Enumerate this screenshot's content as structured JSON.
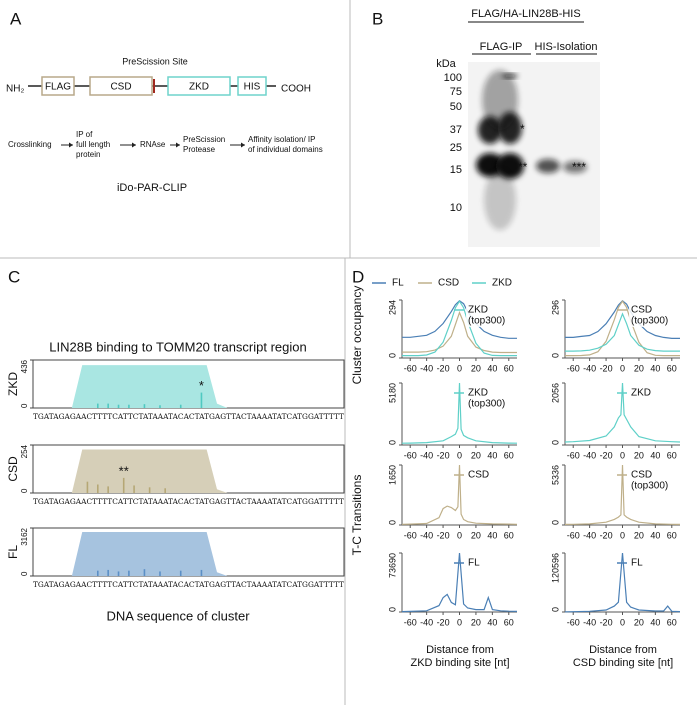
{
  "panel_a": {
    "label": "A",
    "site": "PreScission Site",
    "n_term": "NH₂",
    "c_term": "COOH",
    "domains": [
      "FLAG",
      "CSD",
      "ZKD",
      "HIS"
    ],
    "steps": [
      [
        "Crosslinking"
      ],
      [
        "IP of",
        "full length",
        "protein"
      ],
      [
        "RNAse"
      ],
      [
        "PreScission",
        "Protease"
      ],
      [
        "Affinity isolation/ IP",
        "of individual domains"
      ]
    ],
    "caption": "iDo-PAR-CLIP"
  },
  "panel_b": {
    "label": "B",
    "title": "FLAG/HA-LIN28B-HIS",
    "lanes": [
      "FLAG-IP",
      "HIS-Isolation"
    ],
    "unit": "kDa",
    "markers": [
      100,
      75,
      50,
      37,
      25,
      15,
      10
    ],
    "stars": [
      "*",
      "**",
      "***"
    ]
  },
  "panel_c": {
    "label": "C",
    "title": "LIN28B binding to TOMM20 transcript region",
    "x_label": "DNA sequence of cluster",
    "sequence": "TGATAGAGAACTTTTCATTCTATAAATACACTATGAGTTACTAAAATATCATGGATTTTT"
  },
  "panel_d": {
    "label": "D",
    "legend": [
      {
        "name": "FL",
        "color": "#4a7fb5"
      },
      {
        "name": "CSD",
        "color": "#bfb08a"
      },
      {
        "name": "ZKD",
        "color": "#5fd0c8"
      }
    ],
    "ylabel_top": "Cluster occupancy",
    "ylabel_bottom": "T-C Transitions",
    "x_labels": [
      [
        "Distance from",
        "ZKD binding site [nt]"
      ],
      [
        "Distance from",
        "CSD binding site [nt]"
      ]
    ]
  },
  "chart_data": [
    {
      "type": "area",
      "ylabel": "ZKD",
      "ylim": [
        0,
        436
      ],
      "yticks": [
        0,
        436
      ],
      "area_color": "#a9e6e2",
      "bar_color": "#4fc9c1",
      "area": {
        "x": [
          0,
          7,
          9,
          33,
          35,
          37,
          60
        ],
        "values": [
          0,
          0,
          390,
          390,
          40,
          0,
          0
        ]
      },
      "bars": {
        "x": [
          12,
          14,
          16,
          18,
          21,
          24,
          28,
          32
        ],
        "values": [
          40,
          40,
          30,
          30,
          35,
          25,
          30,
          140
        ]
      },
      "annotation": {
        "text": "*",
        "x": 32
      }
    },
    {
      "type": "area",
      "ylabel": "CSD",
      "ylim": [
        0,
        254
      ],
      "yticks": [
        0,
        254
      ],
      "area_color": "#d6cfb8",
      "bar_color": "#b5a775",
      "area": {
        "x": [
          0,
          7,
          9,
          33,
          35,
          37,
          60
        ],
        "values": [
          0,
          0,
          230,
          230,
          20,
          0,
          0
        ]
      },
      "bars": {
        "x": [
          10,
          12,
          14,
          17,
          19,
          22,
          25
        ],
        "values": [
          60,
          45,
          35,
          80,
          40,
          30,
          25
        ]
      },
      "annotation": {
        "text": "**",
        "x": 17
      }
    },
    {
      "type": "area",
      "ylabel": "FL",
      "ylim": [
        0,
        3162
      ],
      "yticks": [
        0,
        3162
      ],
      "area_color": "#a6c3df",
      "bar_color": "#5b8fc6",
      "area": {
        "x": [
          0,
          7,
          9,
          33,
          35,
          37,
          60
        ],
        "values": [
          0,
          0,
          2900,
          2900,
          250,
          0,
          0
        ]
      },
      "bars": {
        "x": [
          12,
          14,
          16,
          18,
          21,
          24,
          28,
          32
        ],
        "values": [
          350,
          400,
          300,
          350,
          450,
          300,
          350,
          400
        ]
      }
    },
    {
      "type": "line",
      "xlim": [
        -70,
        70
      ],
      "xticks": [
        -60,
        -40,
        -20,
        0,
        20,
        40,
        60
      ],
      "ylim": [
        0,
        294
      ],
      "yticks": [
        0,
        294
      ],
      "legend": {
        "lines": [
          "ZKD",
          "(top300)"
        ],
        "color": "#5fd0c8"
      },
      "x": [
        -70,
        -60,
        -50,
        -40,
        -30,
        -20,
        -10,
        -5,
        0,
        5,
        10,
        20,
        30,
        40,
        50,
        60,
        70
      ],
      "series": [
        {
          "color": "#4a7fb5",
          "values": [
            105,
            105,
            110,
            115,
            135,
            175,
            235,
            270,
            290,
            275,
            235,
            175,
            135,
            115,
            105,
            100,
            100
          ]
        },
        {
          "color": "#bfb08a",
          "values": [
            30,
            30,
            30,
            32,
            40,
            60,
            110,
            170,
            230,
            180,
            110,
            55,
            38,
            30,
            28,
            28,
            28
          ]
        },
        {
          "color": "#5fd0c8",
          "values": [
            12,
            12,
            12,
            15,
            30,
            80,
            190,
            255,
            288,
            255,
            185,
            75,
            25,
            13,
            12,
            12,
            12
          ]
        }
      ]
    },
    {
      "type": "line",
      "xlim": [
        -70,
        70
      ],
      "xticks": [
        -60,
        -40,
        -20,
        0,
        20,
        40,
        60
      ],
      "ylim": [
        0,
        296
      ],
      "yticks": [
        0,
        296
      ],
      "legend": {
        "lines": [
          "CSD",
          "(top300)"
        ],
        "color": "#bfb08a"
      },
      "x": [
        -70,
        -60,
        -50,
        -40,
        -30,
        -20,
        -10,
        -5,
        0,
        5,
        10,
        20,
        30,
        40,
        50,
        60,
        70
      ],
      "series": [
        {
          "color": "#4a7fb5",
          "values": [
            105,
            105,
            110,
            115,
            135,
            175,
            235,
            270,
            292,
            275,
            235,
            175,
            135,
            115,
            105,
            100,
            100
          ]
        },
        {
          "color": "#bfb08a",
          "values": [
            12,
            12,
            13,
            16,
            32,
            85,
            195,
            258,
            290,
            258,
            190,
            80,
            27,
            14,
            12,
            12,
            12
          ]
        },
        {
          "color": "#5fd0c8",
          "values": [
            35,
            35,
            36,
            40,
            50,
            70,
            115,
            170,
            225,
            175,
            115,
            65,
            45,
            38,
            35,
            35,
            35
          ]
        }
      ]
    },
    {
      "type": "line",
      "xlim": [
        -70,
        70
      ],
      "xticks": [
        -60,
        -40,
        -20,
        0,
        20,
        40,
        60
      ],
      "ylim": [
        0,
        5180
      ],
      "yticks": [
        0,
        5180
      ],
      "legend": {
        "lines": [
          "ZKD",
          "(top300)"
        ],
        "color": "#5fd0c8"
      },
      "x": [
        -70,
        -60,
        -40,
        -20,
        -10,
        -5,
        -2,
        0,
        2,
        5,
        10,
        20,
        40,
        60,
        70
      ],
      "series": [
        {
          "color": "#5fd0c8",
          "values": [
            150,
            160,
            200,
            350,
            700,
            900,
            1400,
            5180,
            1300,
            800,
            600,
            350,
            200,
            160,
            150
          ]
        }
      ]
    },
    {
      "type": "line",
      "xlim": [
        -70,
        70
      ],
      "xticks": [
        -60,
        -40,
        -20,
        0,
        20,
        40,
        60
      ],
      "ylim": [
        0,
        2056
      ],
      "yticks": [
        0,
        2056
      ],
      "legend": {
        "lines": [
          "ZKD"
        ],
        "color": "#5fd0c8"
      },
      "x": [
        -70,
        -60,
        -40,
        -20,
        -10,
        -5,
        -2,
        0,
        2,
        5,
        10,
        20,
        40,
        60,
        70
      ],
      "series": [
        {
          "color": "#5fd0c8",
          "values": [
            100,
            110,
            150,
            300,
            600,
            900,
            1000,
            2056,
            1000,
            850,
            600,
            280,
            140,
            110,
            100
          ]
        }
      ]
    },
    {
      "type": "line",
      "xlim": [
        -70,
        70
      ],
      "xticks": [
        -60,
        -40,
        -20,
        0,
        20,
        40,
        60
      ],
      "ylim": [
        0,
        1650
      ],
      "yticks": [
        0,
        1650
      ],
      "legend": {
        "lines": [
          "CSD"
        ],
        "color": "#bfb08a"
      },
      "x": [
        -70,
        -60,
        -40,
        -25,
        -20,
        -15,
        -10,
        -5,
        -2,
        0,
        2,
        5,
        10,
        20,
        40,
        60,
        70
      ],
      "series": [
        {
          "color": "#bfb08a",
          "values": [
            20,
            25,
            40,
            200,
            450,
            520,
            480,
            400,
            500,
            1650,
            300,
            150,
            90,
            50,
            30,
            25,
            20
          ]
        }
      ]
    },
    {
      "type": "line",
      "xlim": [
        -70,
        70
      ],
      "xticks": [
        -60,
        -40,
        -20,
        0,
        20,
        40,
        60
      ],
      "ylim": [
        0,
        5336
      ],
      "yticks": [
        0,
        5336
      ],
      "legend": {
        "lines": [
          "CSD",
          "(top300)"
        ],
        "color": "#bfb08a"
      },
      "x": [
        -70,
        -60,
        -40,
        -20,
        -10,
        -5,
        -2,
        0,
        2,
        5,
        10,
        20,
        40,
        60,
        70
      ],
      "series": [
        {
          "color": "#bfb08a",
          "values": [
            50,
            60,
            100,
            250,
            500,
            700,
            900,
            5336,
            900,
            700,
            500,
            250,
            100,
            60,
            50
          ]
        }
      ]
    },
    {
      "type": "line",
      "xlim": [
        -70,
        70
      ],
      "xticks": [
        -60,
        -40,
        -20,
        0,
        20,
        40,
        60
      ],
      "ylim": [
        0,
        73690
      ],
      "yticks": [
        0,
        73690
      ],
      "legend": {
        "lines": [
          "FL"
        ],
        "color": "#4a7fb5"
      },
      "x": [
        -70,
        -60,
        -40,
        -25,
        -20,
        -15,
        -10,
        -5,
        0,
        5,
        10,
        20,
        30,
        35,
        40,
        50,
        60,
        70
      ],
      "series": [
        {
          "color": "#4a7fb5",
          "values": [
            500,
            800,
            1500,
            8000,
            18000,
            22000,
            12000,
            9000,
            73690,
            10000,
            5000,
            3000,
            3000,
            18000,
            3000,
            1500,
            1000,
            800
          ]
        }
      ]
    },
    {
      "type": "line",
      "xlim": [
        -70,
        70
      ],
      "xticks": [
        -60,
        -40,
        -20,
        0,
        20,
        40,
        60
      ],
      "ylim": [
        0,
        120596
      ],
      "yticks": [
        0,
        120596
      ],
      "legend": {
        "lines": [
          "FL"
        ],
        "color": "#4a7fb5"
      },
      "x": [
        -70,
        -60,
        -40,
        -20,
        -10,
        -5,
        0,
        5,
        10,
        20,
        40,
        50,
        55,
        60,
        70
      ],
      "series": [
        {
          "color": "#4a7fb5",
          "values": [
            500,
            700,
            1500,
            4000,
            12000,
            20000,
            120596,
            20000,
            10000,
            4000,
            2000,
            2000,
            12000,
            1500,
            800
          ]
        }
      ]
    }
  ]
}
